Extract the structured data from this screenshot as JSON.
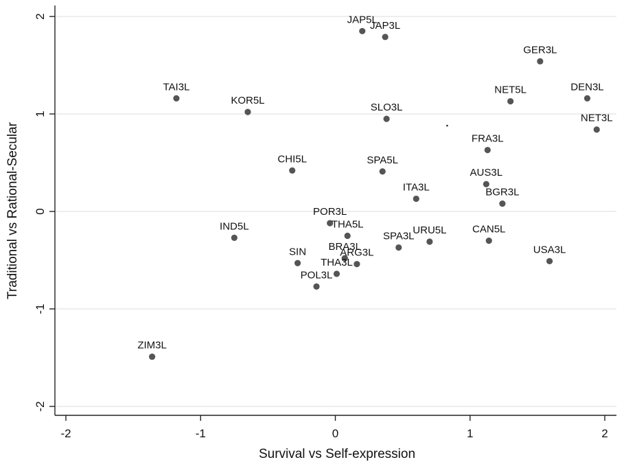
{
  "chart_data": {
    "type": "scatter",
    "xlabel": "Survival vs Self-expression",
    "ylabel": "Traditional vs Rational-Secular",
    "xlim": [
      -2.0,
      2.06
    ],
    "ylim": [
      -2.15,
      2.1
    ],
    "xticks": [
      -2,
      -1,
      0,
      1,
      2
    ],
    "yticks": [
      -2,
      -1,
      0,
      1,
      2
    ],
    "xtick_labels": [
      "-2",
      "-1",
      "0",
      "1",
      "2"
    ],
    "ytick_labels": [
      "-2",
      "-1",
      "0",
      "1",
      "2"
    ],
    "grid": "horizontal",
    "colors": {
      "point": "#555555",
      "grid": "#e3e3e3",
      "axis": "#222222",
      "text": "#111111"
    },
    "points": [
      {
        "label": "JAP5L",
        "x": 0.2,
        "y": 1.85
      },
      {
        "label": "JAP3L",
        "x": 0.37,
        "y": 1.79
      },
      {
        "label": "GER3L",
        "x": 1.52,
        "y": 1.54
      },
      {
        "label": "TAI3L",
        "x": -1.18,
        "y": 1.16
      },
      {
        "label": "KOR5L",
        "x": -0.65,
        "y": 1.02
      },
      {
        "label": "SLO3L",
        "x": 0.38,
        "y": 0.95
      },
      {
        "label": "NET5L",
        "x": 1.3,
        "y": 1.13
      },
      {
        "label": "DEN3L",
        "x": 1.87,
        "y": 1.16
      },
      {
        "label": "NET3L",
        "x": 1.94,
        "y": 0.84
      },
      {
        "label": "FRA3L",
        "x": 1.13,
        "y": 0.63
      },
      {
        "label": "CHI5L",
        "x": -0.32,
        "y": 0.42
      },
      {
        "label": "SPA5L",
        "x": 0.35,
        "y": 0.41
      },
      {
        "label": "AUS3L",
        "x": 1.12,
        "y": 0.28
      },
      {
        "label": "ITA3L",
        "x": 0.6,
        "y": 0.13
      },
      {
        "label": "BGR3L",
        "x": 1.24,
        "y": 0.08
      },
      {
        "label": "POR3L",
        "x": -0.04,
        "y": -0.12
      },
      {
        "label": "THA5L",
        "x": 0.09,
        "y": -0.25
      },
      {
        "label": "IND5L",
        "x": -0.75,
        "y": -0.27
      },
      {
        "label": "SPA3L",
        "x": 0.47,
        "y": -0.37
      },
      {
        "label": "URU5L",
        "x": 0.7,
        "y": -0.31
      },
      {
        "label": "CAN5L",
        "x": 1.14,
        "y": -0.3
      },
      {
        "label": "USA3L",
        "x": 1.59,
        "y": -0.51
      },
      {
        "label": "BRA3L",
        "x": 0.07,
        "y": -0.48
      },
      {
        "label": "ARG3L",
        "x": 0.16,
        "y": -0.54
      },
      {
        "label": "SIN",
        "x": -0.28,
        "y": -0.53
      },
      {
        "label": "THA3L",
        "x": 0.01,
        "y": -0.64
      },
      {
        "label": "POL3L",
        "x": -0.14,
        "y": -0.77
      },
      {
        "label": "ZIM3L",
        "x": -1.36,
        "y": -1.49
      }
    ],
    "stray_mark": {
      "x": 0.83,
      "y": 0.88
    }
  }
}
